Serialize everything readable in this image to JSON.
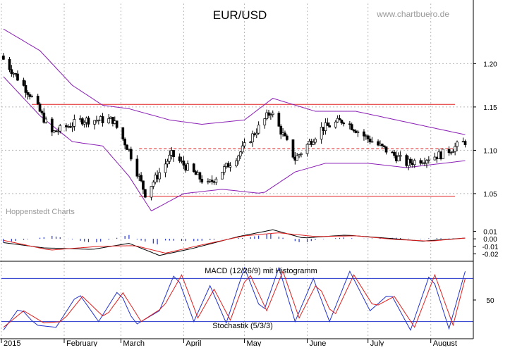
{
  "header": {
    "title": "EUR/USD",
    "site": "www.chartbuero.de",
    "watermark": "Hoppenstedt Charts"
  },
  "colors": {
    "background": "#ffffff",
    "grid": "#b8b8b8",
    "candle_up": "#ffffff",
    "candle_down": "#000000",
    "bollinger": "#8a1fb5",
    "resistance": "#e02020",
    "macd_line": "#000000",
    "signal_line": "#e02020",
    "histogram": "#2233cc",
    "stoch_k": "#2233cc",
    "stoch_d": "#e02020",
    "stoch_band": "#2233cc"
  },
  "chart_data": [
    {
      "type": "candlestick",
      "title": "EUR/USD",
      "x_labels": [
        "2015",
        "February",
        "March",
        "April",
        "May",
        "June",
        "July",
        "August"
      ],
      "y_ticks": [
        1.05,
        1.1,
        1.15,
        1.2
      ],
      "ylim": [
        1.015,
        1.245
      ],
      "grid": true,
      "annotations": [
        {
          "type": "horizontal_line",
          "value": 1.153,
          "style": "solid",
          "color": "#e02020"
        },
        {
          "type": "horizontal_line",
          "value": 1.102,
          "style": "dashed",
          "color": "#e02020"
        },
        {
          "type": "horizontal_line",
          "value": 1.047,
          "style": "solid",
          "color": "#e02020"
        }
      ],
      "series": [
        {
          "indicator": "close",
          "key_points": [
            {
              "date": "2015-01-02",
              "value": 1.205
            },
            {
              "date": "2015-01-15",
              "value": 1.165
            },
            {
              "date": "2015-01-26",
              "value": 1.12
            },
            {
              "date": "2015-02-10",
              "value": 1.135
            },
            {
              "date": "2015-02-25",
              "value": 1.135
            },
            {
              "date": "2015-03-05",
              "value": 1.1
            },
            {
              "date": "2015-03-13",
              "value": 1.05
            },
            {
              "date": "2015-03-26",
              "value": 1.095
            },
            {
              "date": "2015-04-13",
              "value": 1.06
            },
            {
              "date": "2015-04-28",
              "value": 1.095
            },
            {
              "date": "2015-05-14",
              "value": 1.145
            },
            {
              "date": "2015-05-26",
              "value": 1.09
            },
            {
              "date": "2015-06-08",
              "value": 1.125
            },
            {
              "date": "2015-06-19",
              "value": 1.135
            },
            {
              "date": "2015-06-30",
              "value": 1.115
            },
            {
              "date": "2015-07-20",
              "value": 1.085
            },
            {
              "date": "2015-08-06",
              "value": 1.095
            },
            {
              "date": "2015-08-18",
              "value": 1.11
            }
          ]
        },
        {
          "indicator": "bollinger_upper",
          "key_points": [
            {
              "date": "2015-01-02",
              "value": 1.24
            },
            {
              "date": "2015-01-20",
              "value": 1.215
            },
            {
              "date": "2015-02-05",
              "value": 1.175
            },
            {
              "date": "2015-02-20",
              "value": 1.152
            },
            {
              "date": "2015-03-05",
              "value": 1.148
            },
            {
              "date": "2015-03-25",
              "value": 1.135
            },
            {
              "date": "2015-04-10",
              "value": 1.13
            },
            {
              "date": "2015-05-01",
              "value": 1.135
            },
            {
              "date": "2015-05-15",
              "value": 1.16
            },
            {
              "date": "2015-06-05",
              "value": 1.145
            },
            {
              "date": "2015-06-25",
              "value": 1.145
            },
            {
              "date": "2015-07-15",
              "value": 1.135
            },
            {
              "date": "2015-08-18",
              "value": 1.118
            }
          ]
        },
        {
          "indicator": "bollinger_lower",
          "key_points": [
            {
              "date": "2015-01-02",
              "value": 1.185
            },
            {
              "date": "2015-01-20",
              "value": 1.14
            },
            {
              "date": "2015-02-05",
              "value": 1.11
            },
            {
              "date": "2015-02-20",
              "value": 1.105
            },
            {
              "date": "2015-03-05",
              "value": 1.07
            },
            {
              "date": "2015-03-16",
              "value": 1.03
            },
            {
              "date": "2015-04-01",
              "value": 1.05
            },
            {
              "date": "2015-04-20",
              "value": 1.055
            },
            {
              "date": "2015-05-10",
              "value": 1.05
            },
            {
              "date": "2015-05-26",
              "value": 1.075
            },
            {
              "date": "2015-06-10",
              "value": 1.085
            },
            {
              "date": "2015-07-01",
              "value": 1.085
            },
            {
              "date": "2015-07-20",
              "value": 1.08
            },
            {
              "date": "2015-08-18",
              "value": 1.088
            }
          ]
        }
      ]
    },
    {
      "type": "line",
      "title": "MACD (12/26/9) mit Histogramm",
      "y_ticks": [
        0.01,
        0.0,
        -0.01,
        -0.02
      ],
      "ylim": [
        -0.026,
        0.016
      ],
      "series": [
        {
          "indicator": "macd",
          "key_points": [
            {
              "date": "2015-01-02",
              "value": -0.005
            },
            {
              "date": "2015-01-22",
              "value": -0.012
            },
            {
              "date": "2015-02-15",
              "value": -0.014
            },
            {
              "date": "2015-03-05",
              "value": -0.006
            },
            {
              "date": "2015-03-20",
              "value": -0.022
            },
            {
              "date": "2015-04-05",
              "value": -0.013
            },
            {
              "date": "2015-04-28",
              "value": 0.003
            },
            {
              "date": "2015-05-15",
              "value": 0.012
            },
            {
              "date": "2015-05-30",
              "value": 0.001
            },
            {
              "date": "2015-06-20",
              "value": 0.005
            },
            {
              "date": "2015-07-10",
              "value": 0.001
            },
            {
              "date": "2015-07-28",
              "value": -0.003
            },
            {
              "date": "2015-08-18",
              "value": 0.001
            }
          ]
        },
        {
          "indicator": "signal",
          "key_points": [
            {
              "date": "2015-01-02",
              "value": -0.002
            },
            {
              "date": "2015-01-25",
              "value": -0.015
            },
            {
              "date": "2015-02-18",
              "value": -0.01
            },
            {
              "date": "2015-03-08",
              "value": -0.009
            },
            {
              "date": "2015-03-23",
              "value": -0.019
            },
            {
              "date": "2015-04-10",
              "value": -0.008
            },
            {
              "date": "2015-05-01",
              "value": 0.004
            },
            {
              "date": "2015-05-18",
              "value": 0.008
            },
            {
              "date": "2015-06-05",
              "value": 0.003
            },
            {
              "date": "2015-06-25",
              "value": 0.004
            },
            {
              "date": "2015-07-15",
              "value": -0.001
            },
            {
              "date": "2015-08-01",
              "value": -0.003
            },
            {
              "date": "2015-08-18",
              "value": 0.001
            }
          ]
        }
      ]
    },
    {
      "type": "line",
      "title": "Stochastik (5/3/3)",
      "y_ticks": [
        50
      ],
      "ylim": [
        0,
        100
      ],
      "bands": [
        80,
        20
      ],
      "series": [
        {
          "indicator": "stoch_k",
          "key_points": [
            {
              "date": "2015-01-02",
              "value": 8
            },
            {
              "date": "2015-01-10",
              "value": 40
            },
            {
              "date": "2015-01-18",
              "value": 15
            },
            {
              "date": "2015-01-28",
              "value": 12
            },
            {
              "date": "2015-02-08",
              "value": 60
            },
            {
              "date": "2015-02-18",
              "value": 20
            },
            {
              "date": "2015-02-28",
              "value": 65
            },
            {
              "date": "2015-03-08",
              "value": 15
            },
            {
              "date": "2015-03-20",
              "value": 35
            },
            {
              "date": "2015-03-28",
              "value": 90
            },
            {
              "date": "2015-04-06",
              "value": 20
            },
            {
              "date": "2015-04-14",
              "value": 70
            },
            {
              "date": "2015-04-22",
              "value": 18
            },
            {
              "date": "2015-05-01",
              "value": 95
            },
            {
              "date": "2015-05-10",
              "value": 30
            },
            {
              "date": "2015-05-18",
              "value": 95
            },
            {
              "date": "2015-05-26",
              "value": 20
            },
            {
              "date": "2015-06-04",
              "value": 80
            },
            {
              "date": "2015-06-12",
              "value": 20
            },
            {
              "date": "2015-06-22",
              "value": 90
            },
            {
              "date": "2015-07-02",
              "value": 35
            },
            {
              "date": "2015-07-12",
              "value": 60
            },
            {
              "date": "2015-07-22",
              "value": 8
            },
            {
              "date": "2015-08-01",
              "value": 90
            },
            {
              "date": "2015-08-10",
              "value": 10
            },
            {
              "date": "2015-08-18",
              "value": 90
            }
          ]
        },
        {
          "indicator": "stoch_d",
          "key_points": [
            {
              "date": "2015-01-02",
              "value": 12
            },
            {
              "date": "2015-01-12",
              "value": 35
            },
            {
              "date": "2015-01-22",
              "value": 18
            },
            {
              "date": "2015-01-31",
              "value": 20
            },
            {
              "date": "2015-02-10",
              "value": 55
            },
            {
              "date": "2015-02-21",
              "value": 25
            },
            {
              "date": "2015-03-02",
              "value": 60
            },
            {
              "date": "2015-03-11",
              "value": 20
            },
            {
              "date": "2015-03-22",
              "value": 40
            },
            {
              "date": "2015-03-31",
              "value": 85
            },
            {
              "date": "2015-04-08",
              "value": 25
            },
            {
              "date": "2015-04-16",
              "value": 65
            },
            {
              "date": "2015-04-24",
              "value": 22
            },
            {
              "date": "2015-05-03",
              "value": 90
            },
            {
              "date": "2015-05-12",
              "value": 35
            },
            {
              "date": "2015-05-20",
              "value": 90
            },
            {
              "date": "2015-05-28",
              "value": 25
            },
            {
              "date": "2015-06-06",
              "value": 75
            },
            {
              "date": "2015-06-14",
              "value": 25
            },
            {
              "date": "2015-06-24",
              "value": 85
            },
            {
              "date": "2015-07-04",
              "value": 40
            },
            {
              "date": "2015-07-14",
              "value": 55
            },
            {
              "date": "2015-07-24",
              "value": 12
            },
            {
              "date": "2015-08-03",
              "value": 85
            },
            {
              "date": "2015-08-12",
              "value": 15
            },
            {
              "date": "2015-08-18",
              "value": 80
            }
          ]
        }
      ]
    }
  ]
}
